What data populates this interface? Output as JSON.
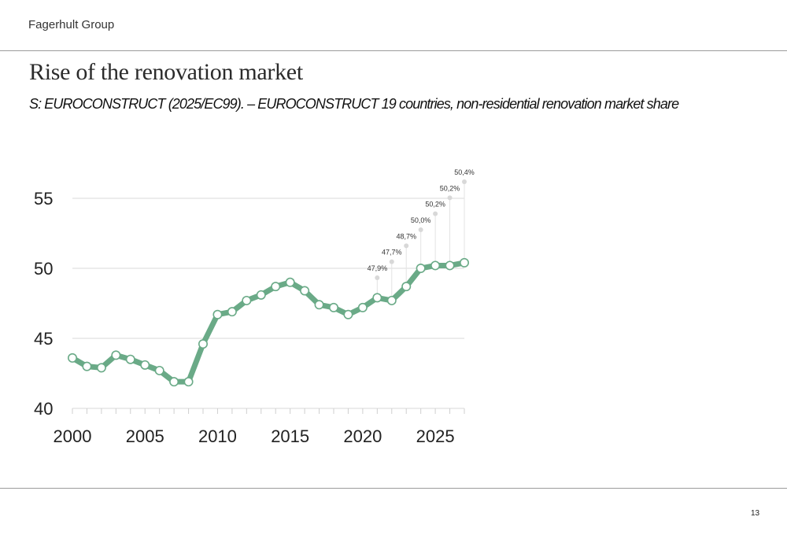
{
  "header": {
    "company": "Fagerhult Group",
    "page_number": "13"
  },
  "chart_data": {
    "type": "line",
    "title": "Rise of the renovation market",
    "subtitle": "S: EUROCONSTRUCT (2025/EC99). – EUROCONSTRUCT 19 countries, non-residential renovation market share",
    "xlabel": "",
    "ylabel": "",
    "xlim": [
      2000,
      2027
    ],
    "ylim": [
      40,
      56
    ],
    "y_ticks": [
      40,
      45,
      50,
      55
    ],
    "x_ticks": [
      2000,
      2005,
      2010,
      2015,
      2020,
      2025
    ],
    "grid": "horizontal",
    "legend": "none",
    "colors": {
      "line": "#6aaa87",
      "marker_fill": "#ffffff",
      "annotation_point": "#d8d8d8",
      "grid": "#d9d9d9"
    },
    "series": [
      {
        "x": [
          2000,
          2001,
          2002,
          2003,
          2004,
          2005,
          2006,
          2007,
          2008,
          2009,
          2010,
          2011,
          2012,
          2013,
          2014,
          2015,
          2016,
          2017,
          2018,
          2019,
          2020,
          2021,
          2022,
          2023,
          2024,
          2025,
          2026,
          2027
        ],
        "values": [
          43.6,
          43.0,
          42.9,
          43.8,
          43.5,
          43.1,
          42.7,
          41.9,
          41.9,
          44.6,
          46.7,
          46.9,
          47.7,
          48.1,
          48.7,
          49.0,
          48.4,
          47.4,
          47.2,
          46.7,
          47.2,
          47.9,
          47.7,
          48.7,
          50.0,
          50.2,
          50.2,
          50.4
        ]
      }
    ],
    "annotations": [
      {
        "x": 2021,
        "label": "47,9%",
        "value": 47.9
      },
      {
        "x": 2022,
        "label": "47,7%",
        "value": 47.7
      },
      {
        "x": 2023,
        "label": "48,7%",
        "value": 48.7
      },
      {
        "x": 2024,
        "label": "50,0%",
        "value": 50.0
      },
      {
        "x": 2025,
        "label": "50,2%",
        "value": 50.2
      },
      {
        "x": 2026,
        "label": "50,2%",
        "value": 50.2
      },
      {
        "x": 2027,
        "label": "50,4%",
        "value": 50.4
      }
    ]
  }
}
